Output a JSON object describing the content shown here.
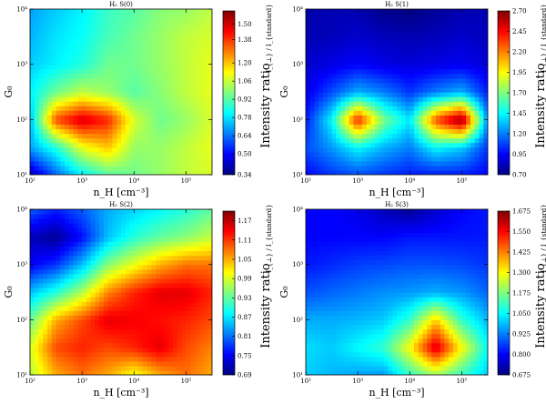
{
  "colormap": [
    "#00007f",
    "#0000ff",
    "#007fff",
    "#00ffff",
    "#7fff7f",
    "#ffff00",
    "#ff7f00",
    "#ff0000",
    "#7f0000"
  ],
  "chart_data": [
    {
      "type": "heatmap",
      "title": "H₂ S(0)",
      "xlabel": "n_H [cm⁻³]",
      "ylabel": "G₀",
      "x_ticks": [
        "10²",
        "10³",
        "10⁴",
        "10⁵"
      ],
      "x_ticks_placement": "partial",
      "y_ticks": [
        "10¹",
        "10²",
        "10³",
        "10⁴"
      ],
      "colorbar_label": "Intensity ratio",
      "colorbar_fraction": "I_{⊥} / I_{standard}",
      "colorbar_ticks": [
        "0.34",
        "0.50",
        "0.64",
        "0.78",
        "0.92",
        "1.06",
        "1.20",
        "1.38",
        "1.50"
      ],
      "vmin": 0.34,
      "vmax": 1.6,
      "xlim": [
        "10²",
        "10⁵·⁵"
      ],
      "ylim": [
        "10¹",
        "10⁴"
      ],
      "grid": false,
      "x_log": [
        2.0,
        2.5,
        3.0,
        3.5,
        4.0,
        4.5,
        5.0,
        5.5
      ],
      "y_log": [
        1.0,
        1.5,
        2.0,
        2.5,
        3.0,
        3.5,
        4.0
      ],
      "z": [
        [
          0.4,
          0.62,
          0.8,
          0.92,
          0.95,
          1.0,
          1.05,
          1.08
        ],
        [
          0.7,
          0.85,
          1.1,
          1.2,
          1.0,
          1.0,
          1.05,
          1.1
        ],
        [
          0.72,
          1.35,
          1.5,
          1.4,
          1.08,
          0.95,
          1.0,
          1.08
        ],
        [
          0.8,
          0.95,
          1.05,
          1.0,
          0.92,
          0.98,
          1.05,
          1.1
        ],
        [
          0.75,
          0.8,
          0.85,
          0.95,
          0.95,
          1.0,
          1.05,
          1.1
        ],
        [
          0.72,
          0.78,
          0.82,
          0.9,
          0.95,
          1.0,
          1.05,
          1.08
        ],
        [
          0.7,
          0.75,
          0.8,
          0.88,
          0.92,
          0.98,
          1.0,
          1.05
        ]
      ]
    },
    {
      "type": "heatmap",
      "title": "H₂ S(1)",
      "xlabel": "n_H [cm⁻³]",
      "ylabel": "G₀",
      "x_ticks": [
        "10²",
        "10³",
        "10⁴",
        "10⁵"
      ],
      "y_ticks": [
        "10¹",
        "10²",
        "10³",
        "10⁴"
      ],
      "colorbar_label": "Intensity ratio",
      "colorbar_fraction": "I_{⊥} / I_{standard}",
      "colorbar_ticks": [
        "0.70",
        "0.95",
        "1.20",
        "1.45",
        "1.70",
        "1.95",
        "2.20",
        "2.45",
        "2.70"
      ],
      "vmin": 0.7,
      "vmax": 2.7,
      "xlim": [
        "10²",
        "10⁵·⁵"
      ],
      "ylim": [
        "10¹",
        "10⁴"
      ],
      "grid": false,
      "x_log": [
        2.0,
        2.5,
        3.0,
        3.5,
        4.0,
        4.5,
        5.0,
        5.5
      ],
      "y_log": [
        1.0,
        1.5,
        2.0,
        2.5,
        3.0,
        3.5,
        4.0
      ],
      "z": [
        [
          0.95,
          1.05,
          1.1,
          1.05,
          1.0,
          1.0,
          1.0,
          0.95
        ],
        [
          1.1,
          1.25,
          1.45,
          1.3,
          1.2,
          1.45,
          1.35,
          1.05
        ],
        [
          1.0,
          1.45,
          2.4,
          1.7,
          1.4,
          2.3,
          2.7,
          1.2
        ],
        [
          0.9,
          1.1,
          1.3,
          1.2,
          1.05,
          1.2,
          1.3,
          1.0
        ],
        [
          0.85,
          0.9,
          0.95,
          0.9,
          0.88,
          0.9,
          0.92,
          0.88
        ],
        [
          0.8,
          0.82,
          0.85,
          0.82,
          0.8,
          0.82,
          0.85,
          0.82
        ],
        [
          0.78,
          0.8,
          0.8,
          0.72,
          0.7,
          0.75,
          0.8,
          0.8
        ]
      ]
    },
    {
      "type": "heatmap",
      "title": "H₂ S(2)",
      "xlabel": "n_H [cm⁻³]",
      "ylabel": "G₀",
      "x_ticks": [
        "10²",
        "10³",
        "10⁴",
        "10⁵"
      ],
      "y_ticks": [
        "10¹",
        "10²",
        "10³",
        "10⁴"
      ],
      "colorbar_label": "Intensity ratio",
      "colorbar_fraction": "I_{⊥} / I_{standard}",
      "colorbar_ticks": [
        "0.69",
        "0.75",
        "0.81",
        "0.87",
        "0.93",
        "0.99",
        "1.05",
        "1.11",
        "1.17"
      ],
      "vmin": 0.69,
      "vmax": 1.2,
      "xlim": [
        "10²",
        "10⁵·⁵"
      ],
      "ylim": [
        "10¹",
        "10⁴"
      ],
      "grid": false,
      "x_log": [
        2.0,
        2.5,
        3.0,
        3.5,
        4.0,
        4.5,
        5.0,
        5.5
      ],
      "y_log": [
        1.0,
        1.5,
        2.0,
        2.5,
        3.0,
        3.5,
        4.0
      ],
      "z": [
        [
          0.97,
          1.05,
          1.08,
          1.05,
          1.0,
          1.05,
          1.08,
          1.05
        ],
        [
          0.99,
          1.1,
          1.12,
          1.1,
          1.12,
          1.15,
          1.1,
          1.07
        ],
        [
          0.93,
          1.05,
          1.1,
          1.15,
          1.14,
          1.13,
          1.12,
          1.1
        ],
        [
          0.85,
          0.9,
          0.97,
          1.07,
          1.12,
          1.15,
          1.15,
          1.12
        ],
        [
          0.75,
          0.78,
          0.85,
          0.95,
          1.0,
          1.05,
          1.08,
          1.08
        ],
        [
          0.72,
          0.7,
          0.76,
          0.85,
          0.9,
          0.93,
          0.95,
          0.98
        ],
        [
          0.8,
          0.77,
          0.8,
          0.84,
          0.86,
          0.88,
          0.9,
          0.93
        ]
      ]
    },
    {
      "type": "heatmap",
      "title": "H₂ S(3)",
      "xlabel": "n_H [cm⁻³]",
      "ylabel": "G₀",
      "x_ticks": [
        "10²",
        "10³",
        "10⁴",
        "10⁵"
      ],
      "y_ticks": [
        "10¹",
        "10²",
        "10³",
        "10⁴"
      ],
      "colorbar_label": "Intensity ratio",
      "colorbar_fraction": "I_{⊥} / I_{standard}",
      "colorbar_ticks": [
        "0.675",
        "0.800",
        "0.925",
        "1.050",
        "1.175",
        "1.300",
        "1.425",
        "1.550",
        "1.675"
      ],
      "vmin": 0.675,
      "vmax": 1.675,
      "xlim": [
        "10²",
        "10⁵·⁵"
      ],
      "ylim": [
        "10¹",
        "10⁴"
      ],
      "grid": false,
      "x_log": [
        2.0,
        2.5,
        3.0,
        3.5,
        4.0,
        4.5,
        5.0,
        5.5
      ],
      "y_log": [
        1.0,
        1.5,
        2.0,
        2.5,
        3.0,
        3.5,
        4.0
      ],
      "z": [
        [
          1.0,
          0.98,
          0.96,
          0.95,
          1.1,
          1.2,
          1.1,
          1.0
        ],
        [
          1.02,
          1.0,
          1.05,
          1.1,
          1.3,
          1.6,
          1.3,
          1.05
        ],
        [
          0.97,
          0.97,
          0.98,
          1.0,
          1.1,
          1.35,
          1.1,
          0.98
        ],
        [
          0.88,
          0.9,
          0.92,
          0.94,
          0.95,
          0.97,
          0.95,
          0.9
        ],
        [
          0.82,
          0.84,
          0.86,
          0.87,
          0.88,
          0.88,
          0.87,
          0.85
        ],
        [
          0.8,
          0.8,
          0.8,
          0.8,
          0.82,
          0.82,
          0.82,
          0.82
        ],
        [
          0.8,
          0.8,
          0.78,
          0.73,
          0.7,
          0.75,
          0.8,
          0.82
        ]
      ]
    }
  ]
}
